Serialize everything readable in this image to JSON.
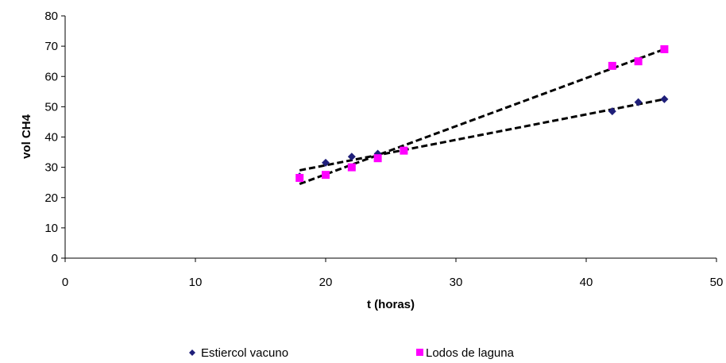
{
  "chart_data": {
    "type": "scatter",
    "title": "",
    "xlabel": "t (horas)",
    "ylabel": "vol CH4",
    "xlim": [
      0,
      50
    ],
    "ylim": [
      0,
      80
    ],
    "xticks": [
      0,
      10,
      20,
      30,
      40,
      50
    ],
    "yticks": [
      0,
      10,
      20,
      30,
      40,
      50,
      60,
      70,
      80
    ],
    "grid": false,
    "legend_position": "bottom",
    "series": [
      {
        "name": "Estiercol vacuno",
        "marker": "diamond",
        "color": "#1f1f7a",
        "x": [
          18,
          20,
          22,
          24,
          42,
          44,
          46
        ],
        "y": [
          27,
          31.5,
          33.5,
          34.5,
          48.5,
          51.5,
          52.5
        ],
        "trendline": {
          "x": [
            18,
            46
          ],
          "y": [
            29,
            52.5
          ]
        }
      },
      {
        "name": "Lodos de laguna",
        "marker": "square",
        "color": "#ff00ff",
        "x": [
          18,
          20,
          22,
          24,
          26,
          42,
          44,
          46
        ],
        "y": [
          26.5,
          27.5,
          30,
          33,
          35.5,
          63.5,
          65,
          69
        ],
        "trendline": {
          "x": [
            18,
            46
          ],
          "y": [
            24.5,
            69
          ]
        }
      }
    ]
  }
}
